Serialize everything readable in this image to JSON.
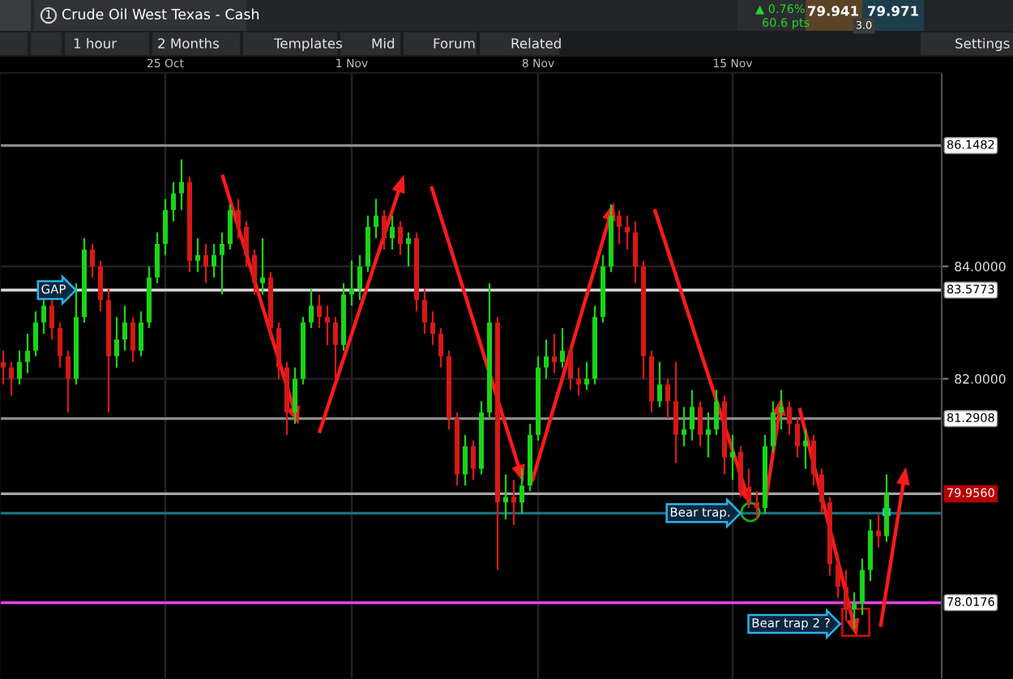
{
  "chart_data": {
    "type": "candlestick",
    "title": "Crude Oil West Texas - Cash",
    "categories": [
      null,
      null,
      null,
      null,
      null,
      null,
      null,
      null,
      null,
      null,
      null,
      null,
      null,
      null,
      null,
      null,
      null,
      null,
      null,
      null,
      "25 Oct",
      null,
      null,
      null,
      null,
      null,
      null,
      null,
      null,
      null,
      null,
      null,
      null,
      null,
      null,
      null,
      null,
      null,
      null,
      null,
      null,
      null,
      null,
      "1 Nov",
      null,
      null,
      null,
      null,
      null,
      null,
      null,
      null,
      null,
      null,
      null,
      null,
      null,
      null,
      null,
      null,
      null,
      null,
      null,
      null,
      null,
      null,
      "8 Nov",
      null,
      null,
      null,
      null,
      null,
      null,
      null,
      null,
      null,
      null,
      null,
      null,
      null,
      null,
      null,
      null,
      null,
      null,
      null,
      null,
      null,
      null,
      null,
      "15 Nov",
      null,
      null,
      null,
      null,
      null,
      null,
      null,
      null,
      null,
      null,
      null,
      null,
      null,
      null,
      null,
      null,
      null,
      null,
      null
    ],
    "ohlc": [
      [
        82.3,
        82.5,
        81.9,
        82.2
      ],
      [
        82.2,
        82.3,
        81.7,
        82.0
      ],
      [
        82.0,
        82.5,
        81.9,
        82.3
      ],
      [
        82.3,
        82.8,
        82.1,
        82.5
      ],
      [
        82.5,
        83.2,
        82.4,
        83.0
      ],
      [
        83.0,
        83.4,
        82.8,
        83.3
      ],
      [
        83.3,
        83.4,
        82.7,
        82.9
      ],
      [
        82.9,
        83.0,
        82.2,
        82.4
      ],
      [
        82.4,
        82.5,
        81.4,
        82.0
      ],
      [
        82.0,
        83.7,
        81.9,
        83.1
      ],
      [
        83.1,
        84.5,
        83.0,
        84.3
      ],
      [
        84.3,
        84.4,
        83.8,
        84.0
      ],
      [
        84.0,
        84.1,
        83.2,
        83.4
      ],
      [
        83.4,
        83.6,
        81.4,
        82.4
      ],
      [
        82.4,
        83.1,
        82.2,
        82.7
      ],
      [
        82.7,
        83.3,
        82.5,
        83.0
      ],
      [
        83.0,
        83.1,
        82.3,
        82.5
      ],
      [
        82.5,
        83.2,
        82.4,
        83.0
      ],
      [
        83.0,
        84.0,
        82.9,
        83.8
      ],
      [
        83.8,
        84.6,
        83.7,
        84.4
      ],
      [
        84.4,
        85.2,
        84.2,
        85.0
      ],
      [
        85.0,
        85.5,
        84.8,
        85.3
      ],
      [
        85.3,
        85.9,
        85.0,
        85.5
      ],
      [
        85.5,
        85.6,
        83.9,
        84.1
      ],
      [
        84.1,
        84.5,
        83.9,
        84.2
      ],
      [
        84.2,
        84.4,
        83.7,
        84.0
      ],
      [
        84.0,
        84.4,
        83.8,
        84.2
      ],
      [
        84.2,
        84.6,
        83.5,
        84.4
      ],
      [
        84.4,
        85.1,
        84.3,
        85.0
      ],
      [
        85.0,
        85.2,
        84.5,
        84.7
      ],
      [
        84.7,
        84.8,
        84.0,
        84.2
      ],
      [
        84.2,
        84.3,
        83.5,
        83.7
      ],
      [
        83.7,
        84.5,
        83.5,
        83.8
      ],
      [
        83.8,
        83.9,
        82.7,
        82.9
      ],
      [
        82.9,
        83.0,
        82.0,
        82.2
      ],
      [
        82.2,
        82.3,
        81.0,
        81.4
      ],
      [
        81.4,
        82.2,
        81.2,
        82.0
      ],
      [
        82.0,
        83.1,
        81.9,
        83.0
      ],
      [
        83.0,
        83.6,
        82.9,
        83.3
      ],
      [
        83.3,
        83.5,
        82.9,
        83.1
      ],
      [
        83.1,
        83.3,
        82.6,
        83.0
      ],
      [
        83.0,
        83.1,
        82.0,
        82.6
      ],
      [
        82.6,
        83.7,
        82.5,
        83.5
      ],
      [
        83.5,
        84.1,
        83.3,
        83.6
      ],
      [
        83.6,
        84.2,
        83.4,
        84.0
      ],
      [
        84.0,
        84.9,
        83.9,
        84.7
      ],
      [
        84.7,
        85.2,
        84.5,
        84.9
      ],
      [
        84.9,
        85.0,
        84.3,
        84.5
      ],
      [
        84.5,
        84.9,
        84.3,
        84.7
      ],
      [
        84.7,
        84.8,
        84.2,
        84.4
      ],
      [
        84.4,
        84.6,
        84.0,
        84.5
      ],
      [
        84.5,
        84.6,
        83.2,
        83.4
      ],
      [
        83.4,
        83.6,
        82.8,
        83.0
      ],
      [
        83.0,
        83.2,
        82.6,
        82.8
      ],
      [
        82.8,
        82.9,
        82.2,
        82.4
      ],
      [
        82.4,
        82.5,
        81.1,
        81.3
      ],
      [
        81.3,
        81.4,
        80.1,
        80.3
      ],
      [
        80.3,
        81.0,
        80.1,
        80.8
      ],
      [
        80.8,
        80.9,
        80.2,
        80.4
      ],
      [
        80.4,
        81.6,
        80.3,
        81.4
      ],
      [
        81.4,
        83.7,
        81.3,
        83.0
      ],
      [
        83.0,
        83.1,
        78.6,
        79.8
      ],
      [
        79.8,
        80.3,
        79.5,
        79.9
      ],
      [
        79.9,
        80.2,
        79.4,
        79.8
      ],
      [
        79.8,
        80.4,
        79.6,
        80.1
      ],
      [
        80.1,
        81.2,
        80.0,
        81.0
      ],
      [
        81.0,
        82.4,
        80.9,
        82.2
      ],
      [
        82.2,
        82.7,
        82.0,
        82.4
      ],
      [
        82.4,
        82.8,
        82.1,
        82.3
      ],
      [
        82.3,
        82.9,
        82.2,
        82.5
      ],
      [
        82.5,
        82.6,
        81.8,
        82.0
      ],
      [
        82.0,
        82.2,
        81.7,
        81.9
      ],
      [
        81.9,
        82.3,
        81.8,
        82.0
      ],
      [
        82.0,
        83.3,
        81.9,
        83.1
      ],
      [
        83.1,
        84.2,
        83.0,
        84.0
      ],
      [
        84.0,
        85.1,
        83.9,
        84.9
      ],
      [
        84.9,
        85.0,
        84.4,
        84.7
      ],
      [
        84.7,
        84.9,
        84.3,
        84.6
      ],
      [
        84.6,
        84.8,
        83.7,
        84.0
      ],
      [
        84.0,
        84.1,
        82.0,
        82.4
      ],
      [
        82.4,
        82.5,
        81.4,
        81.6
      ],
      [
        81.6,
        82.3,
        81.5,
        81.9
      ],
      [
        81.9,
        82.0,
        81.3,
        81.6
      ],
      [
        81.6,
        82.3,
        80.5,
        81.0
      ],
      [
        81.0,
        81.5,
        80.8,
        81.1
      ],
      [
        81.1,
        81.8,
        80.9,
        81.5
      ],
      [
        81.5,
        81.6,
        80.8,
        81.0
      ],
      [
        81.0,
        81.4,
        80.6,
        81.1
      ],
      [
        81.1,
        81.8,
        81.0,
        81.6
      ],
      [
        81.6,
        81.7,
        80.3,
        80.6
      ],
      [
        80.6,
        81.0,
        80.2,
        80.7
      ],
      [
        80.7,
        80.8,
        79.9,
        80.0
      ],
      [
        80.0,
        80.4,
        79.7,
        79.8
      ],
      [
        79.8,
        80.0,
        79.5,
        79.7
      ],
      [
        79.7,
        81.0,
        79.6,
        80.8
      ],
      [
        80.8,
        81.6,
        80.7,
        81.4
      ],
      [
        81.4,
        81.8,
        81.1,
        81.5
      ],
      [
        81.5,
        81.6,
        81.0,
        81.2
      ],
      [
        81.2,
        81.3,
        80.6,
        80.8
      ],
      [
        80.8,
        81.1,
        80.4,
        80.9
      ],
      [
        80.9,
        81.0,
        80.1,
        80.3
      ],
      [
        80.3,
        80.4,
        79.6,
        79.8
      ],
      [
        79.8,
        79.9,
        78.5,
        78.7
      ],
      [
        78.7,
        78.9,
        78.1,
        78.3
      ],
      [
        78.3,
        78.6,
        77.7,
        77.9
      ],
      [
        77.9,
        78.2,
        77.55,
        78.0
      ],
      [
        78.0,
        78.8,
        77.8,
        78.6
      ],
      [
        78.6,
        79.5,
        78.4,
        79.3
      ],
      [
        79.3,
        79.6,
        79.0,
        79.2
      ],
      [
        79.2,
        80.3,
        79.1,
        79.96
      ]
    ],
    "colors": [
      "#d81818",
      "#d81818",
      "#19d419",
      "#19d419",
      "#19d419",
      "#19d419",
      "#d81818",
      "#d81818",
      "#d81818",
      "#19d419",
      "#19d419",
      "#d81818",
      "#d81818",
      "#d81818",
      "#19d419",
      "#19d419",
      "#d81818",
      "#19d419",
      "#19d419",
      "#19d419",
      "#19d419",
      "#19d419",
      "#19d419",
      "#d81818",
      "#19d419",
      "#d81818",
      "#19d419",
      "#19d419",
      "#19d419",
      "#d81818",
      "#d81818",
      "#d81818",
      "#19d419",
      "#d81818",
      "#d81818",
      "#d81818",
      "#19d419",
      "#19d419",
      "#19d419",
      "#d81818",
      "#d81818",
      "#d81818",
      "#19d419",
      "#19d419",
      "#19d419",
      "#19d419",
      "#19d419",
      "#d81818",
      "#19d419",
      "#d81818",
      "#19d419",
      "#d81818",
      "#d81818",
      "#d81818",
      "#d81818",
      "#d81818",
      "#d81818",
      "#19d419",
      "#d81818",
      "#19d419",
      "#19d419",
      "#d81818",
      "#19d419",
      "#d81818",
      "#19d419",
      "#19d419",
      "#19d419",
      "#19d419",
      "#d81818",
      "#19d419",
      "#d81818",
      "#d81818",
      "#19d419",
      "#19d419",
      "#19d419",
      "#19d419",
      "#d81818",
      "#d81818",
      "#d81818",
      "#d81818",
      "#d81818",
      "#19d419",
      "#d81818",
      "#d81818",
      "#19d419",
      "#19d419",
      "#d81818",
      "#19d419",
      "#19d419",
      "#d81818",
      "#19d419",
      "#d81818",
      "#d81818",
      "#d81818",
      "#19d419",
      "#19d419",
      "#19d419",
      "#d81818",
      "#d81818",
      "#19d419",
      "#d81818",
      "#d81818",
      "#d81818",
      "#d81818",
      "#d81818",
      "#19d419",
      "#19d419",
      "#19d419",
      "#d81818",
      "#19d419"
    ],
    "ylim": [
      76.66,
      87.44
    ],
    "yticks": [
      {
        "value": 82,
        "label": "82.0000"
      },
      {
        "value": 84,
        "label": "84.0000"
      }
    ],
    "grid": true,
    "ref_lines": [
      {
        "axis": "y",
        "value": 86.1482,
        "label": "86.1482",
        "color": "#8c8c8c"
      },
      {
        "axis": "y",
        "value": 83.5773,
        "label": "83.5773",
        "color": "#d9d9d9"
      },
      {
        "axis": "y",
        "value": 81.2908,
        "label": "81.2908",
        "color": "#8c8c8c"
      },
      {
        "axis": "y",
        "value": 79.956,
        "label": "79.9560",
        "color": "#a6a6a6"
      },
      {
        "axis": "y",
        "value": 79.61,
        "label": null,
        "color": "#1d6f7e"
      },
      {
        "axis": "y",
        "value": 78.0176,
        "label": "78.0176",
        "color": "#ff40ff"
      }
    ],
    "annotations": [
      "1",
      "1 hour",
      "2 Months",
      "Templates",
      "Mid",
      "Forum",
      "Related",
      "Settings",
      "▲ 0.76%",
      "60.6 pts",
      "79.941",
      "79.971",
      "3.0",
      {
        "text": "GAP",
        "y": 83.5773
      },
      {
        "text": "Bear trap.",
        "y": 79.61
      },
      "Bear trap 2 ?"
    ]
  }
}
